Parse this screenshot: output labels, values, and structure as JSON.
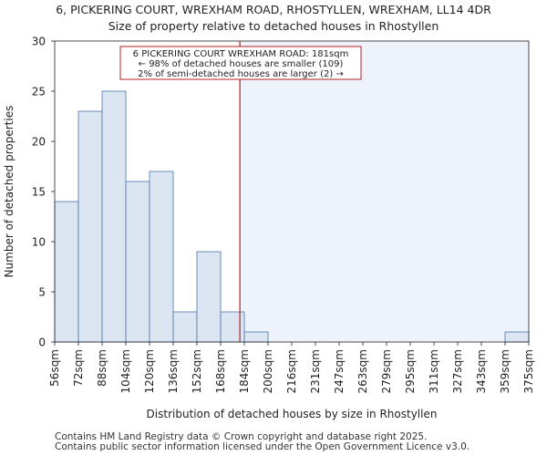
{
  "chart_data": {
    "type": "bar",
    "title_line1": "6, PICKERING COURT, WREXHAM ROAD, RHOSTYLLEN, WREXHAM, LL14 4DR",
    "title_line2": "Size of property relative to detached houses in Rhostyllen",
    "xlabel": "Distribution of detached houses by size in Rhostyllen",
    "ylabel": "Number of detached properties",
    "x_ticks": [
      "56sqm",
      "72sqm",
      "88sqm",
      "104sqm",
      "120sqm",
      "136sqm",
      "152sqm",
      "168sqm",
      "184sqm",
      "200sqm",
      "216sqm",
      "231sqm",
      "247sqm",
      "263sqm",
      "279sqm",
      "295sqm",
      "311sqm",
      "327sqm",
      "343sqm",
      "359sqm",
      "375sqm"
    ],
    "values": [
      14,
      23,
      25,
      16,
      17,
      3,
      9,
      3,
      1,
      0,
      0,
      0,
      0,
      0,
      0,
      0,
      0,
      0,
      0,
      1
    ],
    "ylim": [
      0,
      30
    ],
    "y_ticks": [
      0,
      5,
      10,
      15,
      20,
      25,
      30
    ],
    "marker_value_sqm": 181,
    "bar_color": "#dce6f3",
    "bar_edge_color": "#4a74aa",
    "highlight_bg": "#eef2fb",
    "marker_color": "#b22222",
    "annotation": {
      "line1": "6 PICKERING COURT WREXHAM ROAD: 181sqm",
      "line2": "← 98% of detached houses are smaller (109)",
      "line3": "2% of semi-detached houses are larger (2) →"
    }
  },
  "footer": {
    "line1": "Contains HM Land Registry data © Crown copyright and database right 2025.",
    "line2": "Contains public sector information licensed under the Open Government Licence v3.0."
  }
}
